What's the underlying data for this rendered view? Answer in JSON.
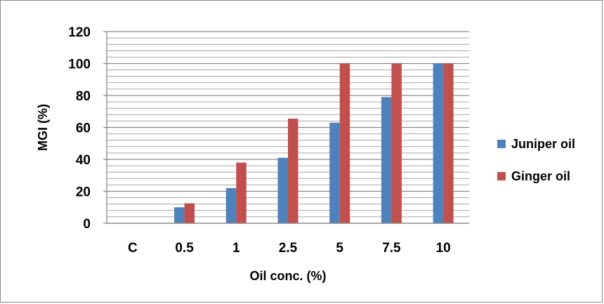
{
  "chart_data": {
    "type": "bar",
    "categories": [
      "C",
      "0.5",
      "1",
      "2.5",
      "5",
      "7.5",
      "10"
    ],
    "series": [
      {
        "name": "Juniper oil",
        "color": "#4f81bd",
        "values": [
          0,
          10,
          22,
          41,
          63,
          79,
          100
        ]
      },
      {
        "name": "Ginger oil",
        "color": "#c0504d",
        "values": [
          0,
          12.5,
          38,
          65.5,
          100,
          100,
          100
        ]
      }
    ],
    "xlabel": "Oil conc. (%)",
    "ylabel": "MGI (%)",
    "ylim": [
      0,
      120
    ],
    "yticks": [
      0,
      20,
      40,
      60,
      80,
      100,
      120
    ],
    "grid": true,
    "minor_grid_step": 4,
    "legend_position": "right"
  }
}
